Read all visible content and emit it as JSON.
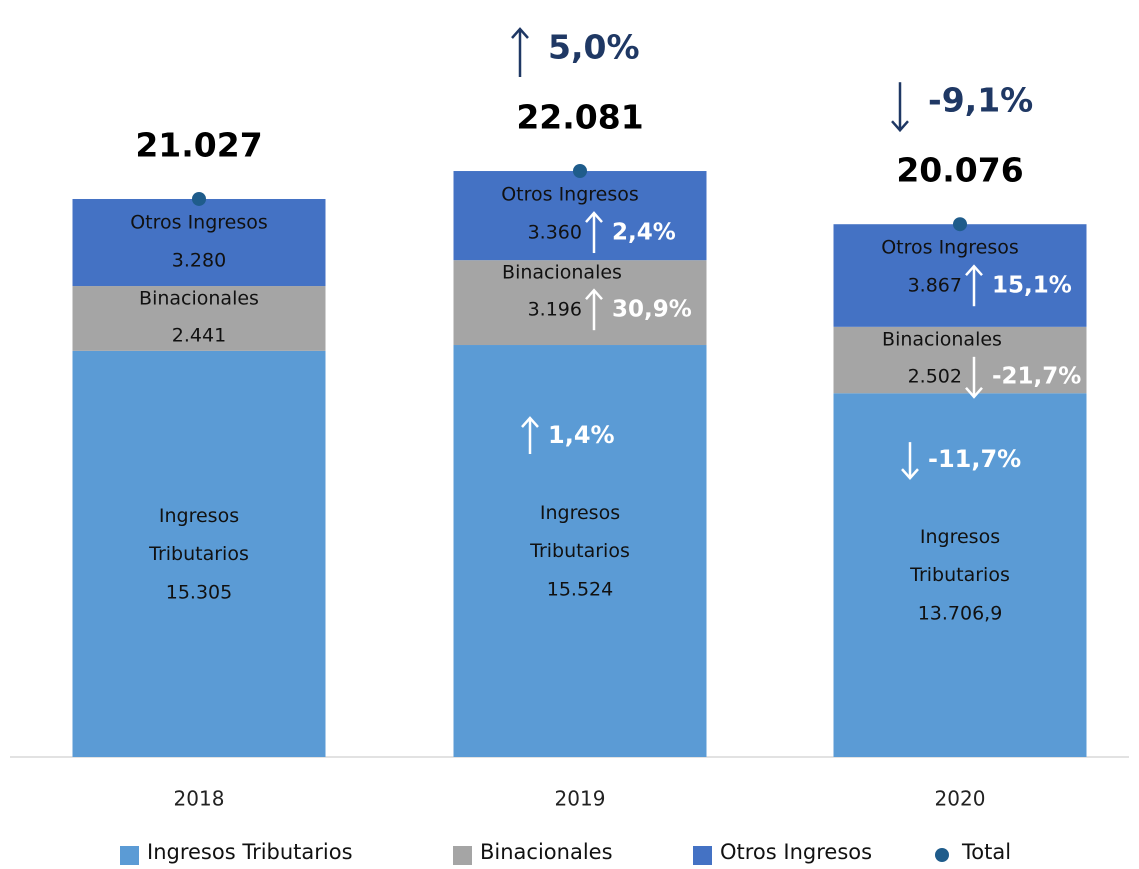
{
  "chart_data": {
    "type": "stacked_bar",
    "categories": [
      "2018",
      "2019",
      "2020"
    ],
    "series": [
      {
        "name": "Ingresos Tributarios",
        "color": "#5b9bd5",
        "values": [
          15305,
          15524,
          13706.9
        ],
        "value_labels": [
          "15.305",
          "15.524",
          "13.706,9"
        ],
        "change_labels": [
          null,
          "1,4%",
          "-11,7%"
        ]
      },
      {
        "name": "Binacionales",
        "color": "#a5a5a5",
        "values": [
          2441,
          3196,
          2502
        ],
        "value_labels": [
          "2.441",
          "3.196",
          "2.502"
        ],
        "change_labels": [
          null,
          "30,9%",
          "-21,7%"
        ]
      },
      {
        "name": "Otros Ingresos",
        "color": "#4472c4",
        "values": [
          3280,
          3360,
          3867
        ],
        "value_labels": [
          "3.280",
          "3.360",
          "3.867"
        ],
        "change_labels": [
          null,
          "2,4%",
          "15,1%"
        ]
      }
    ],
    "total": {
      "name": "Total",
      "color": "#1f5c8b",
      "values": [
        21027,
        22081,
        20076
      ],
      "value_labels": [
        "21.027",
        "22.081",
        "20.076"
      ],
      "change_labels": [
        null,
        "5,0%",
        "-9,1%"
      ]
    }
  }
}
